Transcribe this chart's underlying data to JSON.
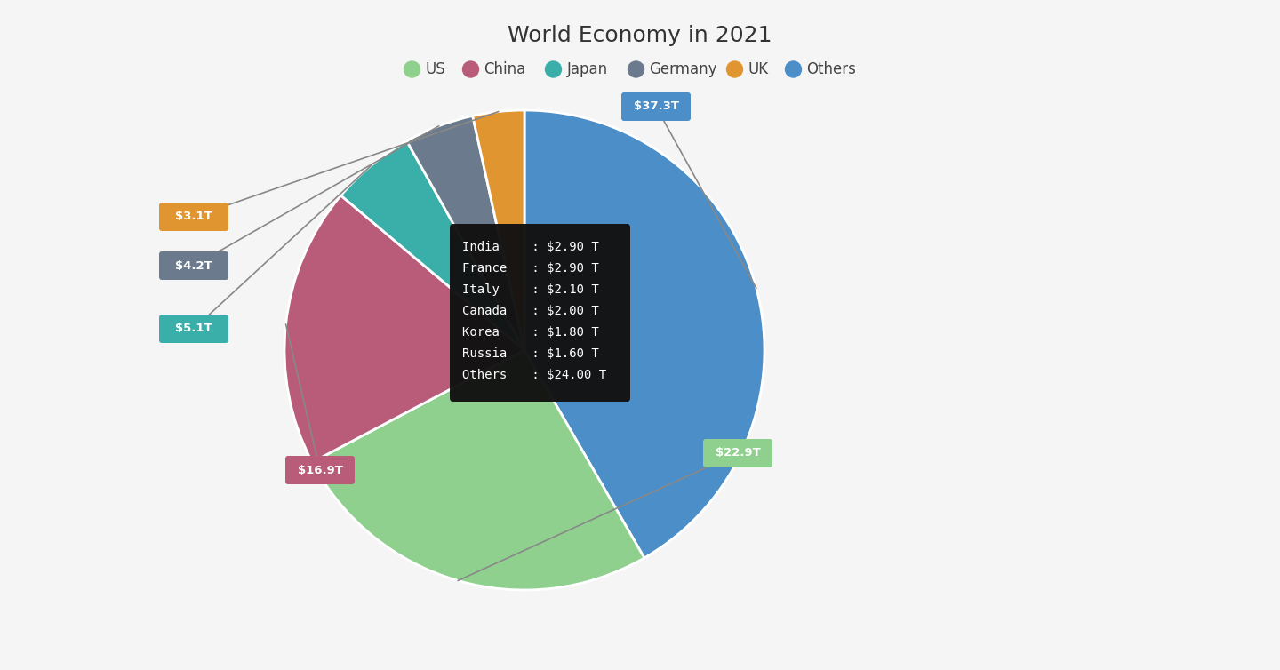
{
  "title": "World Economy in 2021",
  "title_fontsize": 18,
  "background_color": "#f5f5f5",
  "segments": [
    {
      "label": "Others",
      "value": 37.3,
      "color": "#4B8EC8",
      "display": "$37.3T"
    },
    {
      "label": "US",
      "value": 22.9,
      "color": "#8FD08F",
      "display": "$22.9T"
    },
    {
      "label": "China",
      "value": 16.9,
      "color": "#B85C7A",
      "display": "$16.9T"
    },
    {
      "label": "Japan",
      "value": 5.1,
      "color": "#3AAFAA",
      "display": "$5.1T"
    },
    {
      "label": "Germany",
      "value": 4.2,
      "color": "#6B7B8D",
      "display": "$4.2T"
    },
    {
      "label": "UK",
      "value": 3.1,
      "color": "#E09530",
      "display": "$3.1T"
    }
  ],
  "legend_colors": [
    "#8FD08F",
    "#B85C7A",
    "#3AAFAA",
    "#6B7B8D",
    "#E09530",
    "#4B8EC8"
  ],
  "legend_labels": [
    "US",
    "China",
    "Japan",
    "Germany",
    "UK",
    "Others"
  ],
  "tooltip": {
    "bg_color": "#111111",
    "text_color": "#ffffff",
    "lines": [
      [
        "India  ",
        " : $2.90 T"
      ],
      [
        "France ",
        " : $2.90 T"
      ],
      [
        "Italy  ",
        " : $2.10 T"
      ],
      [
        "Canada ",
        " : $2.00 T"
      ],
      [
        "Korea  ",
        " : $1.80 T"
      ],
      [
        "Russia ",
        " : $1.60 T"
      ],
      [
        "Others ",
        " : $24.00 T"
      ]
    ]
  }
}
